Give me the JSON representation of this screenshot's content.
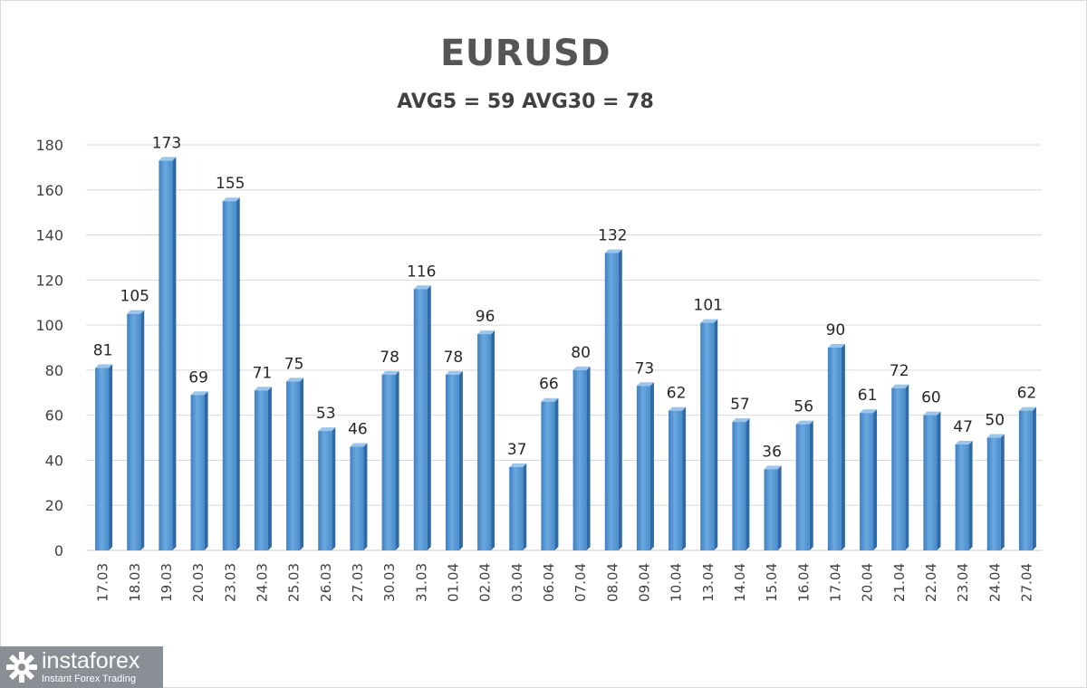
{
  "title": "EURUSD",
  "subtitle": "AVG5 = 59 AVG30 = 78",
  "chart_data": {
    "type": "bar",
    "categories": [
      "17.03",
      "18.03",
      "19.03",
      "20.03",
      "23.03",
      "24.03",
      "25.03",
      "26.03",
      "27.03",
      "30.03",
      "31.03",
      "01.04",
      "02.04",
      "03.04",
      "06.04",
      "07.04",
      "08.04",
      "09.04",
      "10.04",
      "13.04",
      "14.04",
      "15.04",
      "16.04",
      "17.04",
      "20.04",
      "21.04",
      "22.04",
      "23.04",
      "24.04",
      "27.04"
    ],
    "values": [
      81,
      105,
      173,
      69,
      155,
      71,
      75,
      53,
      46,
      78,
      116,
      78,
      96,
      37,
      66,
      80,
      132,
      73,
      62,
      101,
      57,
      36,
      56,
      90,
      61,
      72,
      60,
      47,
      50,
      62
    ],
    "ylim": [
      0,
      180
    ],
    "yticks": [
      0,
      20,
      40,
      60,
      80,
      100,
      120,
      140,
      160,
      180
    ],
    "grid": true,
    "bar_color": "#5b9bd5",
    "bar_dark": "#2e6aa6",
    "bar_light": "#9cc5ec"
  },
  "logo": {
    "name": "instaforex",
    "tagline": "Instant Forex Trading",
    "icon": "gear-logo-icon"
  }
}
